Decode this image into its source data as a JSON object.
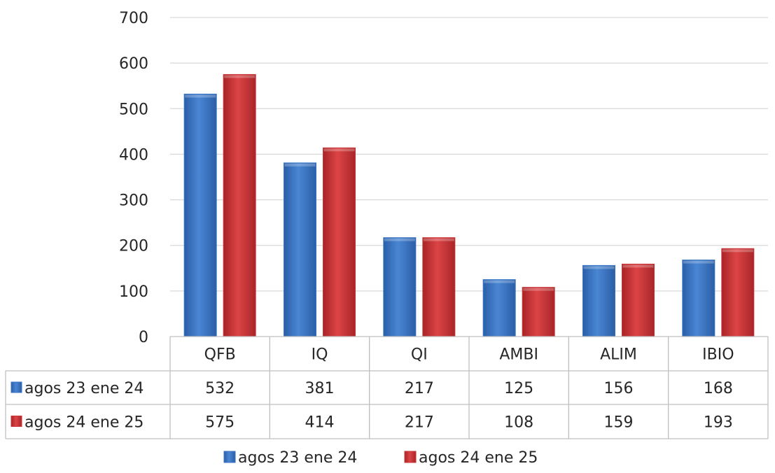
{
  "chart_data": {
    "type": "bar",
    "categories": [
      "QFB",
      "IQ",
      "QI",
      "AMBI",
      "ALIM",
      "IBIO"
    ],
    "series": [
      {
        "name": "agos 23 ene 24",
        "values": [
          532,
          381,
          217,
          125,
          156,
          168
        ],
        "color": "#3a74c4"
      },
      {
        "name": "agos 24 ene 25",
        "values": [
          575,
          414,
          217,
          108,
          159,
          193
        ],
        "color": "#c93537"
      }
    ],
    "y_ticks": [
      0,
      100,
      200,
      300,
      400,
      500,
      600,
      700
    ],
    "ylim": [
      0,
      700
    ],
    "grid": true,
    "data_table": true,
    "legend_position": "bottom"
  }
}
